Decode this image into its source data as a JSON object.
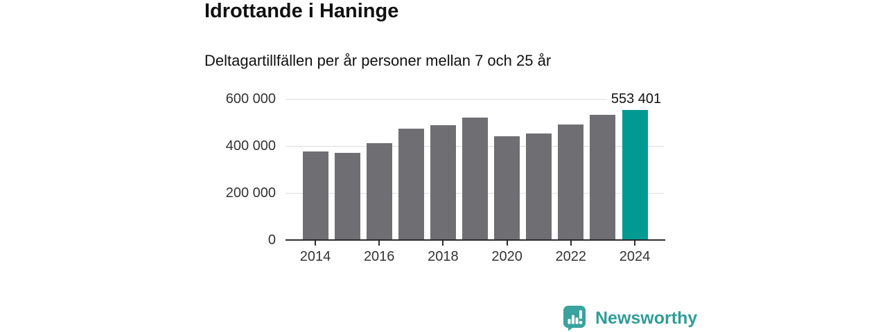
{
  "chart_data": {
    "type": "bar",
    "title": "Idrottande i Haninge",
    "subtitle": "Deltagartillfällen per år personer mellan 7 och 25 år",
    "categories": [
      2014,
      2015,
      2016,
      2017,
      2018,
      2019,
      2020,
      2021,
      2022,
      2023,
      2024
    ],
    "values": [
      378000,
      371000,
      411000,
      473000,
      488000,
      522000,
      441000,
      453000,
      493000,
      533000,
      553401
    ],
    "highlight_index": 10,
    "highlight_label": "553 401",
    "bar_color": "#6e6e73",
    "highlight_color": "#009a93",
    "ylim": [
      0,
      600000
    ],
    "yticks": [
      {
        "value": 0,
        "label": "0"
      },
      {
        "value": 200000,
        "label": "200 000"
      },
      {
        "value": 400000,
        "label": "400 000"
      },
      {
        "value": 600000,
        "label": "600 000"
      }
    ],
    "xticks": [
      {
        "year": 2014,
        "label": "2014"
      },
      {
        "year": 2016,
        "label": "2016"
      },
      {
        "year": 2018,
        "label": "2018"
      },
      {
        "year": 2020,
        "label": "2020"
      },
      {
        "year": 2022,
        "label": "2022"
      },
      {
        "year": 2024,
        "label": "2024"
      }
    ],
    "grid": "horizontal",
    "legend": "none"
  },
  "brand": {
    "name": "Newsworthy",
    "color": "#2f9d98"
  }
}
